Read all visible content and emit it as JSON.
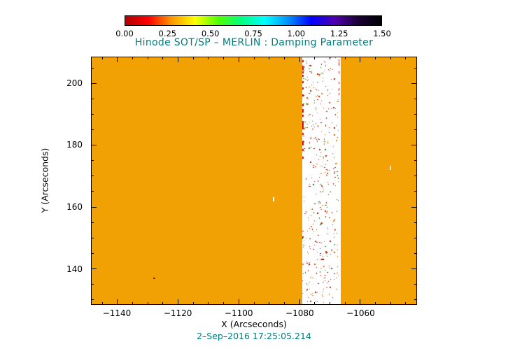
{
  "colorbar": {
    "tick_labels": [
      "0.00",
      "0.25",
      "0.50",
      "0.75",
      "1.00",
      "1.25",
      "1.50"
    ],
    "gradient": [
      "#b00000",
      "#ff0000",
      "#ff9800",
      "#ffff00",
      "#50ff00",
      "#00ff80",
      "#00ffff",
      "#0090ff",
      "#0000ff",
      "#5000b0",
      "#1a0035",
      "#000000"
    ]
  },
  "chart_data": {
    "type": "heatmap",
    "title": "Hinode SOT/SP – MERLIN : Damping Parameter",
    "xlabel": "X (Arcseconds)",
    "ylabel": "Y (Arcseconds)",
    "timestamp": "2–Sep–2016 17:25:05.214",
    "title_color": "#007d7e",
    "xlim": [
      -1148.5,
      -1041.5
    ],
    "ylim": [
      128.5,
      208.5
    ],
    "x_ticks": [
      {
        "value": -1140,
        "label": "−1140"
      },
      {
        "value": -1120,
        "label": "−1120"
      },
      {
        "value": -1100,
        "label": "−1100"
      },
      {
        "value": -1080,
        "label": "−1080"
      },
      {
        "value": -1060,
        "label": "−1060"
      }
    ],
    "y_ticks": [
      {
        "value": 140,
        "label": "140"
      },
      {
        "value": 160,
        "label": "160"
      },
      {
        "value": 180,
        "label": "180"
      },
      {
        "value": 200,
        "label": "200"
      }
    ],
    "minor_tick_step": 5,
    "colorbar_range": [
      0.0,
      1.5
    ],
    "colorbar_tick_values": [
      0.0,
      0.25,
      0.5,
      0.75,
      1.0,
      1.25,
      1.5
    ],
    "background_value": 0.3,
    "background_color": "#f2a104",
    "missing_stripe_x": [
      -1079.0,
      -1066.5
    ],
    "stripe_speckles": {
      "seed": 42,
      "count": 380,
      "palette": [
        "#b81400",
        "#b81400",
        "#9a1000",
        "#7d0d00",
        "#d45500",
        "#c03000",
        "#0f7d0f",
        "#1c8a1c",
        "#b81400",
        "#e08000"
      ],
      "edge_color": "#c21200",
      "left_edge_dashes": 22,
      "right_edge_dashes": 8
    },
    "extra_specks": [
      {
        "x": -1088.7,
        "y": 163.2,
        "color": "#ffffff",
        "w": 2,
        "h": 6
      },
      {
        "x": -1050.2,
        "y": 173.4,
        "color": "#ffeccc",
        "w": 2,
        "h": 6
      },
      {
        "x": -1128.2,
        "y": 137.1,
        "color": "#8a2a00",
        "w": 3,
        "h": 2
      }
    ]
  }
}
